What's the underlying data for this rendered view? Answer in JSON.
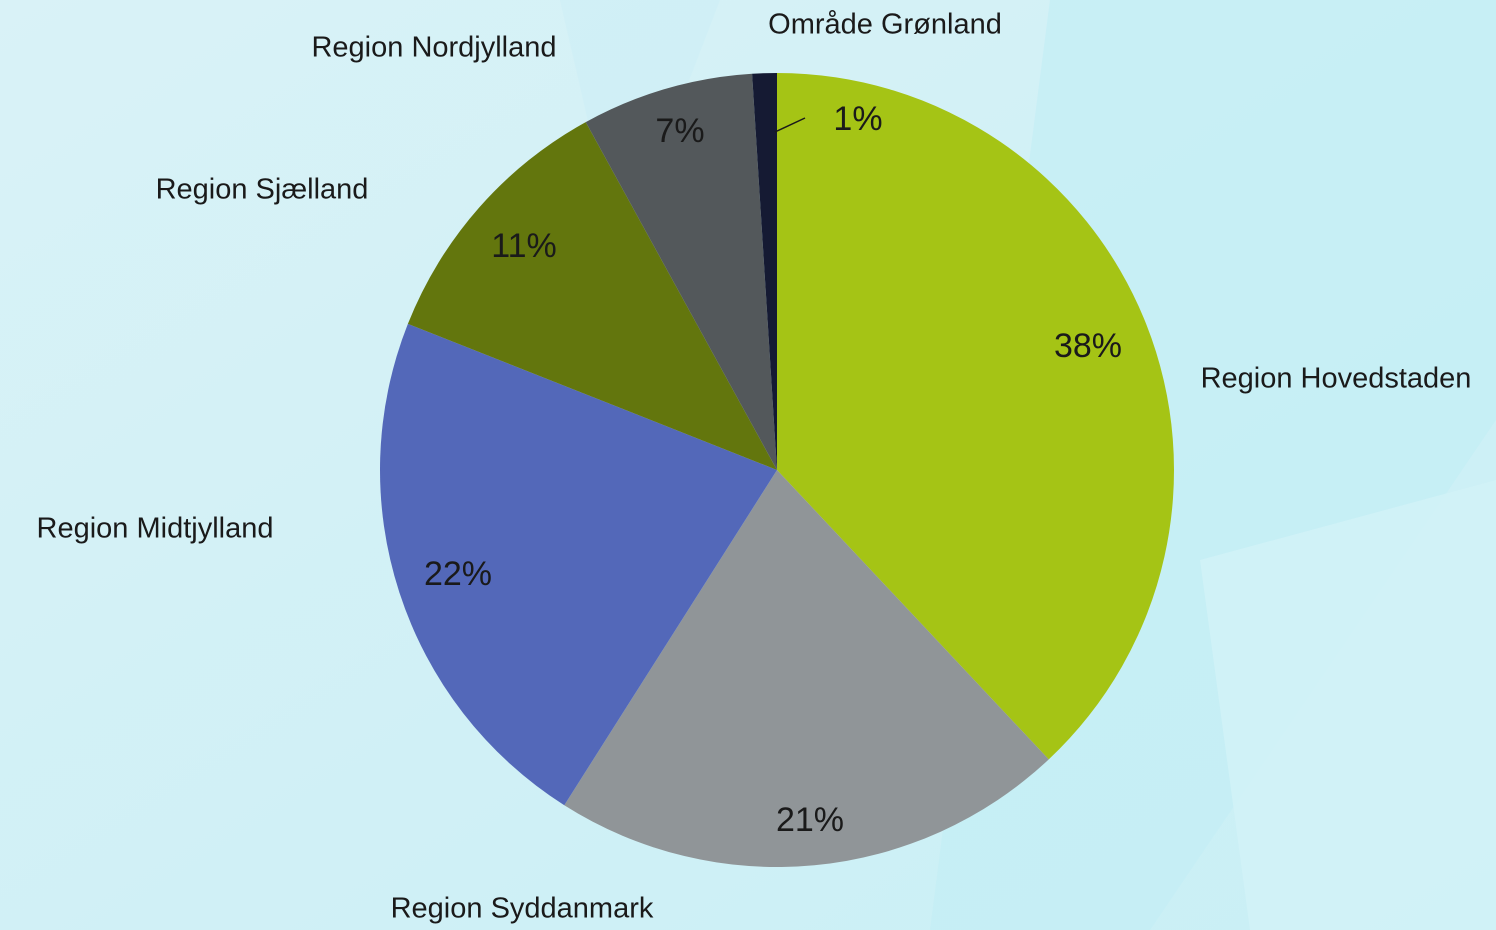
{
  "chart_data": {
    "type": "pie",
    "categories": [
      "Region Hovedstaden",
      "Region Syddanmark",
      "Region Midtjylland",
      "Region Sjælland",
      "Region Nordjylland",
      "Område Grønland"
    ],
    "values": [
      38,
      21,
      22,
      11,
      7,
      1
    ],
    "value_labels": [
      "38%",
      "21%",
      "22%",
      "11%",
      "7%",
      "1%"
    ],
    "colors": [
      "#a5c415",
      "#909598",
      "#5368b9",
      "#63760d",
      "#53585b",
      "#151a33"
    ]
  }
}
